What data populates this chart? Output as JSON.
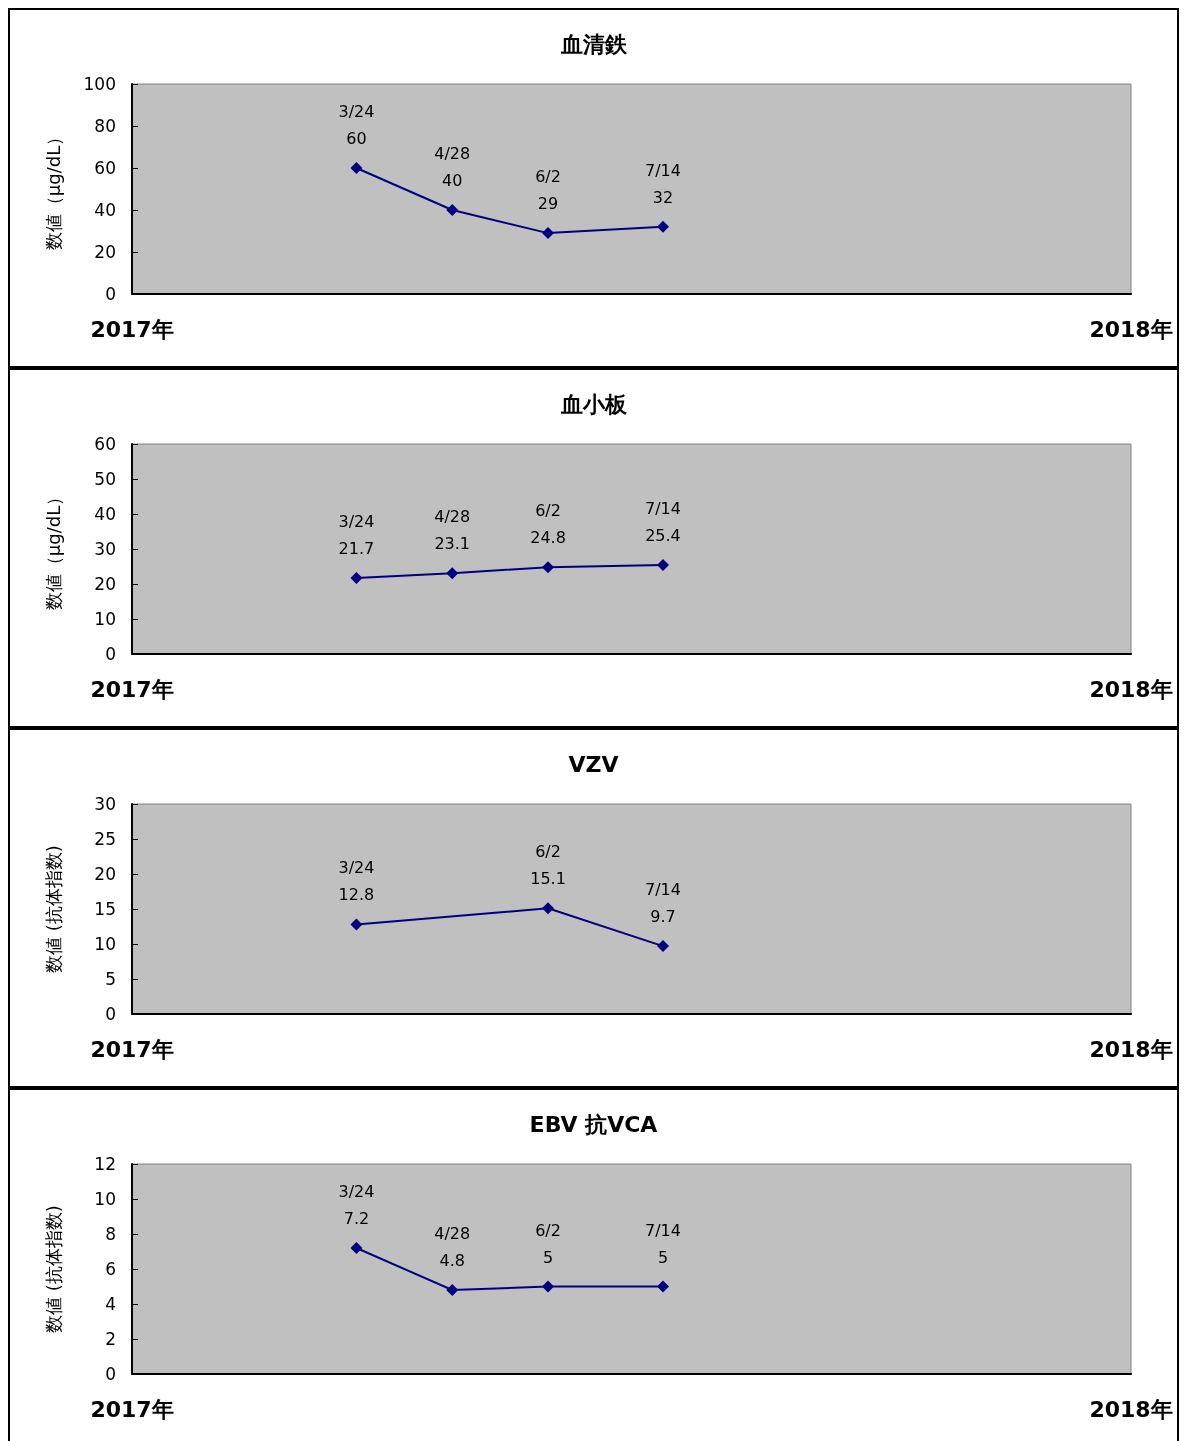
{
  "chart_data": [
    {
      "type": "line",
      "title": "血清鉄",
      "ylabel": "数値（μg/dL）",
      "x": [
        "2017-03-24",
        "2017-04-28",
        "2017-06-02",
        "2017-07-14"
      ],
      "marker": "diamond",
      "series": [
        {
          "color": "#000080",
          "values": [
            60,
            40,
            29,
            32
          ],
          "value_labels": [
            "3/24\n60",
            "4/28\n40",
            "6/2\n29",
            "7/14\n32"
          ]
        }
      ],
      "xlim": [
        "2017-01-01",
        "2018-01-01"
      ],
      "xticks": [
        {
          "value": "2017-01-01",
          "label": "2017年"
        },
        {
          "value": "2018-01-01",
          "label": "2018年"
        }
      ],
      "ylim": [
        0,
        100
      ],
      "yticks": [
        0,
        20,
        40,
        60,
        80,
        100
      ]
    },
    {
      "type": "line",
      "title": "血小板",
      "ylabel": "数値（μg/dL）",
      "x": [
        "2017-03-24",
        "2017-04-28",
        "2017-06-02",
        "2017-07-14"
      ],
      "marker": "diamond",
      "series": [
        {
          "color": "#000080",
          "values": [
            21.7,
            23.1,
            24.8,
            25.4
          ],
          "value_labels": [
            "3/24\n21.7",
            "4/28\n23.1",
            "6/2\n24.8",
            "7/14\n25.4"
          ]
        }
      ],
      "xlim": [
        "2017-01-01",
        "2018-01-01"
      ],
      "xticks": [
        {
          "value": "2017-01-01",
          "label": "2017年"
        },
        {
          "value": "2018-01-01",
          "label": "2018年"
        }
      ],
      "ylim": [
        0,
        60
      ],
      "yticks": [
        0,
        10,
        20,
        30,
        40,
        50,
        60
      ]
    },
    {
      "type": "line",
      "title": "VZV",
      "ylabel": "数値 (抗体指数)",
      "x": [
        "2017-03-24",
        "2017-06-02",
        "2017-07-14"
      ],
      "marker": "diamond",
      "series": [
        {
          "color": "#000080",
          "values": [
            12.8,
            15.1,
            9.7
          ],
          "value_labels": [
            "3/24\n12.8",
            "6/2\n15.1",
            "7/14\n9.7"
          ]
        }
      ],
      "xlim": [
        "2017-01-01",
        "2018-01-01"
      ],
      "xticks": [
        {
          "value": "2017-01-01",
          "label": "2017年"
        },
        {
          "value": "2018-01-01",
          "label": "2018年"
        }
      ],
      "ylim": [
        0,
        30
      ],
      "yticks": [
        0,
        5,
        10,
        15,
        20,
        25,
        30
      ]
    },
    {
      "type": "line",
      "title": "EBV 抗VCA",
      "ylabel": "数値 (抗体指数)",
      "x": [
        "2017-03-24",
        "2017-04-28",
        "2017-06-02",
        "2017-07-14"
      ],
      "marker": "diamond",
      "series": [
        {
          "color": "#000080",
          "values": [
            7.2,
            4.8,
            5,
            5
          ],
          "value_labels": [
            "3/24\n7.2",
            "4/28\n4.8",
            "6/2\n5",
            "7/14\n5"
          ]
        }
      ],
      "xlim": [
        "2017-01-01",
        "2018-01-01"
      ],
      "xticks": [
        {
          "value": "2017-01-01",
          "label": "2017年"
        },
        {
          "value": "2018-01-01",
          "label": "2018年"
        }
      ],
      "ylim": [
        0,
        12
      ],
      "yticks": [
        0,
        2,
        4,
        6,
        8,
        10,
        12
      ]
    }
  ]
}
